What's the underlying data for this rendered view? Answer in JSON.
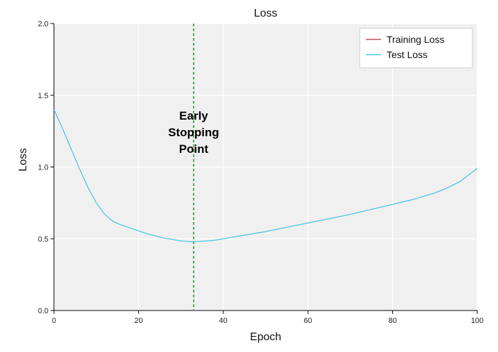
{
  "chart_data": {
    "type": "line",
    "title": "Loss",
    "xlabel": "Epoch",
    "ylabel": "Loss",
    "xlim": [
      0,
      100
    ],
    "ylim": [
      0.0,
      2.0
    ],
    "xticks": [
      0,
      20,
      40,
      60,
      80,
      100
    ],
    "yticks": [
      0.0,
      0.5,
      1.0,
      1.5,
      2.0
    ],
    "xtick_labels": [
      "0",
      "20",
      "40",
      "60",
      "80",
      "100"
    ],
    "ytick_labels": [
      "0.0",
      "0.5",
      "1.0",
      "1.5",
      "2.0"
    ],
    "grid": true,
    "legend_position": "top-right",
    "series": [
      {
        "name": "Training Loss",
        "color": "#c0504d",
        "x": [],
        "y": []
      },
      {
        "name": "Test Loss",
        "color": "#4fc3e8",
        "x": [
          0,
          2,
          4,
          6,
          8,
          10,
          12,
          14,
          16,
          18,
          20,
          22,
          24,
          26,
          28,
          30,
          32,
          34,
          36,
          38,
          40,
          45,
          50,
          55,
          60,
          65,
          70,
          75,
          80,
          85,
          90,
          93,
          96,
          98,
          100
        ],
        "y": [
          1.4,
          1.27,
          1.13,
          0.99,
          0.86,
          0.75,
          0.67,
          0.62,
          0.595,
          0.575,
          0.555,
          0.535,
          0.52,
          0.505,
          0.495,
          0.485,
          0.48,
          0.48,
          0.485,
          0.49,
          0.5,
          0.525,
          0.55,
          0.58,
          0.61,
          0.64,
          0.67,
          0.705,
          0.74,
          0.775,
          0.82,
          0.855,
          0.9,
          0.945,
          0.99
        ]
      }
    ],
    "annotation": {
      "x": 33,
      "lines": [
        "Early",
        "Stopping",
        "Point"
      ],
      "color": "#22cc22"
    }
  }
}
